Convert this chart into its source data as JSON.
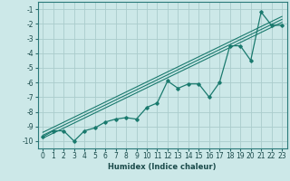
{
  "title": "",
  "xlabel": "Humidex (Indice chaleur)",
  "bg_color": "#cce8e8",
  "grid_color": "#aacccc",
  "line_color": "#1a7a6e",
  "xlim": [
    -0.5,
    23.5
  ],
  "ylim": [
    -10.5,
    -0.5
  ],
  "xticks": [
    0,
    1,
    2,
    3,
    4,
    5,
    6,
    7,
    8,
    9,
    10,
    11,
    12,
    13,
    14,
    15,
    16,
    17,
    18,
    19,
    20,
    21,
    22,
    23
  ],
  "yticks": [
    -10,
    -9,
    -8,
    -7,
    -6,
    -5,
    -4,
    -3,
    -2,
    -1
  ],
  "curve_x": [
    0,
    1,
    2,
    3,
    4,
    5,
    6,
    7,
    8,
    9,
    10,
    11,
    12,
    13,
    14,
    15,
    16,
    17,
    18,
    19,
    20,
    21,
    22,
    23
  ],
  "curve_y": [
    -9.7,
    -9.3,
    -9.3,
    -10.0,
    -9.3,
    -9.1,
    -8.7,
    -8.5,
    -8.4,
    -8.5,
    -7.7,
    -7.4,
    -5.9,
    -6.4,
    -6.1,
    -6.1,
    -7.0,
    -6.0,
    -3.5,
    -3.5,
    -4.5,
    -1.2,
    -2.1,
    -2.1
  ],
  "trend_lines": [
    {
      "x": [
        0,
        23
      ],
      "y": [
        -9.8,
        -1.9
      ]
    },
    {
      "x": [
        0,
        23
      ],
      "y": [
        -9.6,
        -1.7
      ]
    },
    {
      "x": [
        0,
        23
      ],
      "y": [
        -9.4,
        -1.5
      ]
    }
  ],
  "xlabel_fontsize": 6.0,
  "tick_fontsize": 5.5
}
